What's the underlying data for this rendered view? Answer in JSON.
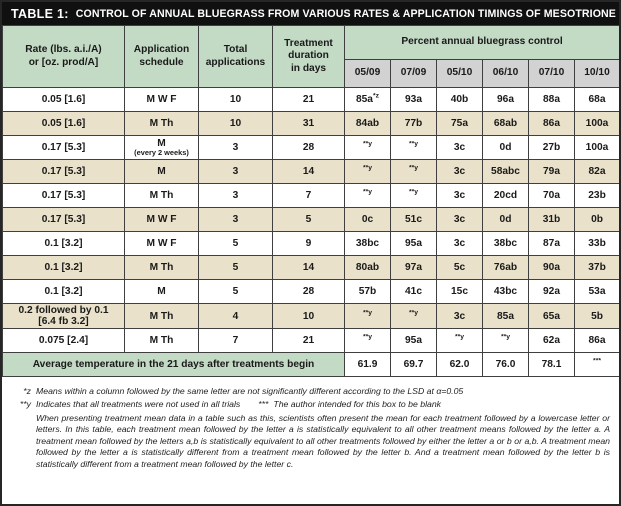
{
  "title": {
    "label": "TABLE 1:",
    "text": "CONTROL OF ANNUAL BLUEGRASS FROM VARIOUS RATES & APPLICATION TIMINGS OF MESOTRIONE"
  },
  "columns": {
    "rate": "Rate (lbs. a.i./A)\nor [oz. prod/A]",
    "schedule": "Application\nschedule",
    "total": "Total\napplications",
    "duration": "Treatment\nduration\nin days",
    "percent_control": "Percent annual bluegrass control",
    "dates": [
      "05/09",
      "07/09",
      "05/10",
      "06/10",
      "07/10",
      "10/10"
    ]
  },
  "rows": [
    {
      "rate": "0.05 [1.6]",
      "schedule": "M W F",
      "schedule_note": "",
      "total": "10",
      "duration": "21",
      "values": [
        "85a^*z",
        "93a",
        "40b",
        "96a",
        "88a",
        "68a"
      ]
    },
    {
      "rate": "0.05 [1.6]",
      "schedule": "M Th",
      "schedule_note": "",
      "total": "10",
      "duration": "31",
      "values": [
        "84ab",
        "77b",
        "75a",
        "68ab",
        "86a",
        "100a"
      ]
    },
    {
      "rate": "0.17 [5.3]",
      "schedule": "M",
      "schedule_note": "(every 2 weeks)",
      "total": "3",
      "duration": "28",
      "values": [
        "^**y",
        "^**y",
        "3c",
        "0d",
        "27b",
        "100a"
      ]
    },
    {
      "rate": "0.17 [5.3]",
      "schedule": "M",
      "schedule_note": "",
      "total": "3",
      "duration": "14",
      "values": [
        "^**y",
        "^**y",
        "3c",
        "58abc",
        "79a",
        "82a"
      ]
    },
    {
      "rate": "0.17 [5.3]",
      "schedule": "M Th",
      "schedule_note": "",
      "total": "3",
      "duration": "7",
      "values": [
        "^**y",
        "^**y",
        "3c",
        "20cd",
        "70a",
        "23b"
      ]
    },
    {
      "rate": "0.17 [5.3]",
      "schedule": "M W F",
      "schedule_note": "",
      "total": "3",
      "duration": "5",
      "values": [
        "0c",
        "51c",
        "3c",
        "0d",
        "31b",
        "0b"
      ]
    },
    {
      "rate": "0.1 [3.2]",
      "schedule": "M W F",
      "schedule_note": "",
      "total": "5",
      "duration": "9",
      "values": [
        "38bc",
        "95a",
        "3c",
        "38bc",
        "87a",
        "33b"
      ]
    },
    {
      "rate": "0.1 [3.2]",
      "schedule": "M Th",
      "schedule_note": "",
      "total": "5",
      "duration": "14",
      "values": [
        "80ab",
        "97a",
        "5c",
        "76ab",
        "90a",
        "37b"
      ]
    },
    {
      "rate": "0.1 [3.2]",
      "schedule": "M",
      "schedule_note": "",
      "total": "5",
      "duration": "28",
      "values": [
        "57b",
        "41c",
        "15c",
        "43bc",
        "92a",
        "53a"
      ]
    },
    {
      "rate": "0.2 followed by 0.1\n[6.4 fb 3.2]",
      "schedule": "M Th",
      "schedule_note": "",
      "total": "4",
      "duration": "10",
      "values": [
        "^**y",
        "^**y",
        "3c",
        "85a",
        "65a",
        "5b"
      ]
    },
    {
      "rate": "0.075 [2.4]",
      "schedule": "M Th",
      "schedule_note": "",
      "total": "7",
      "duration": "21",
      "values": [
        "^**y",
        "95a",
        "^**y",
        "^**y",
        "62a",
        "86a"
      ]
    }
  ],
  "average_row": {
    "label": "Average temperature in the 21 days after treatments begin",
    "values": [
      "61.9",
      "69.7",
      "62.0",
      "76.0",
      "78.1",
      "^***"
    ]
  },
  "footnotes": {
    "z_marker": "*z",
    "z_text": "Means within a column followed by the same letter are not significantly different according to the LSD at α=0.05",
    "y_marker": "**y",
    "y_text": "Indicates that all treatments were not used in all trials",
    "blank_marker": "***",
    "blank_text": "The author intended for this box to be blank",
    "paragraph": "When presenting treatment mean data in a table such as this, scientists often present the mean for each treatment followed by a lowercase letter or letters. In this table, each treatment mean followed by the letter a is statistically equivalent to all other treatment means followed by the letter a. A treatment mean followed by the letters a,b is statistically equivalent to all other treatments followed by either the letter a or b or a,b. A treatment mean followed by the letter a is statistically different from a treatment mean followed by the letter b. And a treatment mean followed by the letter b is statistically different from a treatment mean followed by the letter c."
  },
  "colors": {
    "header_green": "#c3dac4",
    "date_gray": "#d2d2d2",
    "row_beige": "#e9e1ca",
    "title_bar_black": "#101010",
    "grid_line": "#3f3f3f"
  }
}
